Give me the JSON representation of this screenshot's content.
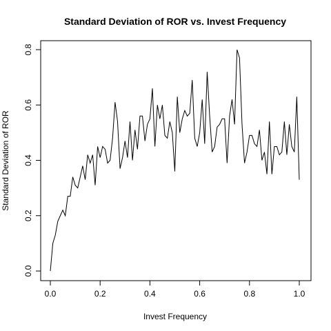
{
  "chart_data": {
    "type": "line",
    "title": "Standard Deviation of ROR vs. Invest Frequency",
    "xlabel": "Invest Frequency",
    "ylabel": "Standard Deviation of ROR",
    "xlim": [
      0,
      1
    ],
    "ylim": [
      0,
      0.8
    ],
    "xticks": [
      0.0,
      0.2,
      0.4,
      0.6,
      0.8,
      1.0
    ],
    "xtick_labels": [
      "0.0",
      "0.2",
      "0.4",
      "0.6",
      "0.8",
      "1.0"
    ],
    "yticks": [
      0.0,
      0.2,
      0.4,
      0.6,
      0.8
    ],
    "ytick_labels": [
      "0.0",
      "0.2",
      "0.4",
      "0.6",
      "0.8"
    ],
    "grid": false,
    "line_color": "#000000",
    "x": [
      0.0,
      0.01,
      0.02,
      0.03,
      0.04,
      0.05,
      0.06,
      0.07,
      0.08,
      0.09,
      0.1,
      0.11,
      0.12,
      0.13,
      0.14,
      0.15,
      0.16,
      0.17,
      0.18,
      0.19,
      0.2,
      0.21,
      0.22,
      0.23,
      0.24,
      0.25,
      0.26,
      0.27,
      0.28,
      0.29,
      0.3,
      0.31,
      0.32,
      0.33,
      0.34,
      0.35,
      0.36,
      0.37,
      0.38,
      0.39,
      0.4,
      0.41,
      0.42,
      0.43,
      0.44,
      0.45,
      0.46,
      0.47,
      0.48,
      0.49,
      0.5,
      0.51,
      0.52,
      0.53,
      0.54,
      0.55,
      0.56,
      0.57,
      0.58,
      0.59,
      0.6,
      0.61,
      0.62,
      0.63,
      0.64,
      0.65,
      0.66,
      0.67,
      0.68,
      0.69,
      0.7,
      0.71,
      0.72,
      0.73,
      0.74,
      0.75,
      0.76,
      0.77,
      0.78,
      0.79,
      0.8,
      0.81,
      0.82,
      0.83,
      0.84,
      0.85,
      0.86,
      0.87,
      0.88,
      0.89,
      0.9,
      0.91,
      0.92,
      0.93,
      0.94,
      0.95,
      0.96,
      0.97,
      0.98,
      0.99,
      1.0
    ],
    "y": [
      0.0,
      0.1,
      0.13,
      0.18,
      0.2,
      0.22,
      0.2,
      0.27,
      0.27,
      0.34,
      0.31,
      0.3,
      0.34,
      0.38,
      0.33,
      0.42,
      0.39,
      0.42,
      0.31,
      0.45,
      0.41,
      0.45,
      0.44,
      0.39,
      0.4,
      0.48,
      0.61,
      0.54,
      0.37,
      0.41,
      0.47,
      0.41,
      0.54,
      0.4,
      0.51,
      0.44,
      0.56,
      0.56,
      0.47,
      0.53,
      0.55,
      0.66,
      0.45,
      0.6,
      0.55,
      0.6,
      0.49,
      0.48,
      0.54,
      0.5,
      0.36,
      0.63,
      0.5,
      0.55,
      0.58,
      0.56,
      0.57,
      0.69,
      0.48,
      0.45,
      0.5,
      0.62,
      0.46,
      0.72,
      0.56,
      0.43,
      0.45,
      0.52,
      0.53,
      0.55,
      0.55,
      0.39,
      0.56,
      0.62,
      0.53,
      0.8,
      0.77,
      0.53,
      0.39,
      0.43,
      0.49,
      0.49,
      0.46,
      0.45,
      0.51,
      0.4,
      0.43,
      0.35,
      0.54,
      0.35,
      0.45,
      0.45,
      0.42,
      0.43,
      0.54,
      0.42,
      0.53,
      0.45,
      0.43,
      0.63,
      0.33
    ]
  }
}
